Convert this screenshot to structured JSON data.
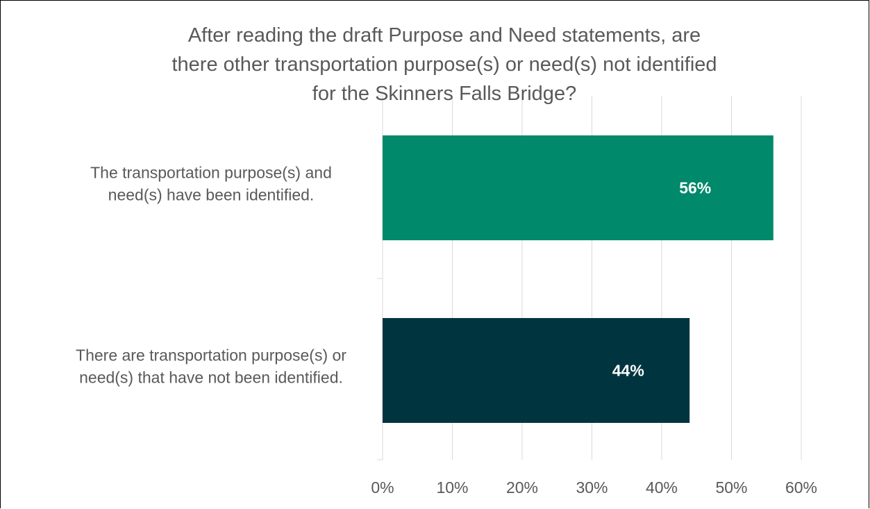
{
  "chart_data": {
    "type": "bar",
    "orientation": "horizontal",
    "title_lines": [
      "After reading the draft Purpose and Need statements, are",
      "there other transportation purpose(s) or need(s) not identified",
      "for the Skinners Falls Bridge?"
    ],
    "categories": [
      [
        "The transportation purpose(s) and",
        "need(s) have been identified."
      ],
      [
        "There are transportation purpose(s) or",
        "need(s) that have not been identified."
      ]
    ],
    "values": [
      56,
      44
    ],
    "data_labels": [
      "56%",
      "44%"
    ],
    "colors": [
      "#00896B",
      "#003540"
    ],
    "xlim": [
      0,
      60
    ],
    "xticks": [
      0,
      10,
      20,
      30,
      40,
      50,
      60
    ],
    "xtick_labels": [
      "0%",
      "10%",
      "20%",
      "30%",
      "40%",
      "50%",
      "60%"
    ],
    "xlabel": "",
    "ylabel": "",
    "grid": true,
    "gridline_color": "#D9D9D9",
    "legend": false
  }
}
